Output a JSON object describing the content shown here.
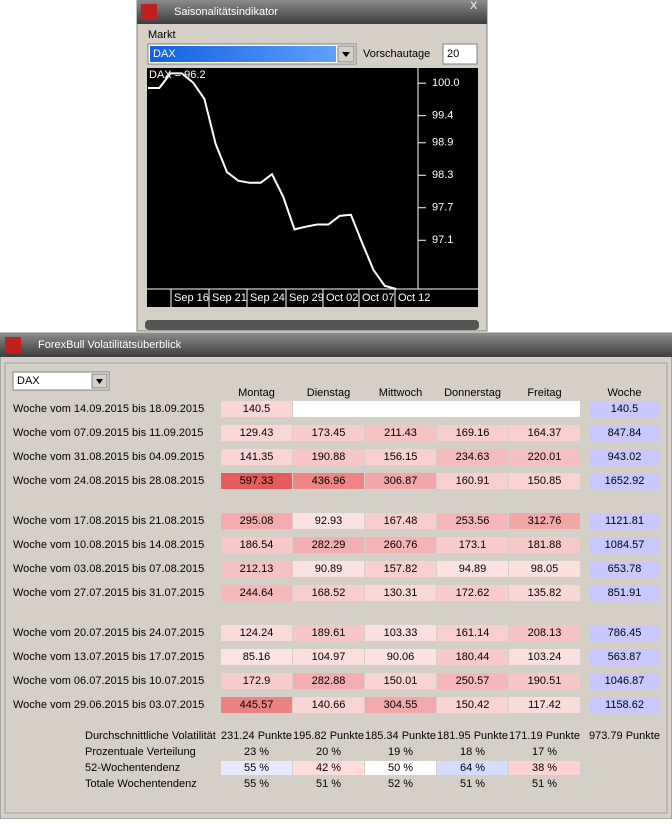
{
  "window1": {
    "title": "Saisonalitätsindikator",
    "market_label": "Markt",
    "market": "DAX",
    "preview_label": "Vorschautage",
    "preview_days": "20",
    "close": "X"
  },
  "chart_data": {
    "type": "line",
    "label": "DAX = 96.2",
    "color": "#ffffff",
    "values": [
      99.91,
      99.91,
      100.18,
      100.18,
      100.01,
      99.71,
      98.88,
      98.36,
      98.2,
      98.16,
      98.16,
      98.32,
      97.9,
      97.3,
      97.35,
      97.39,
      97.39,
      97.55,
      97.57,
      97.05,
      96.55,
      96.26,
      96.2
    ],
    "x_labels": [
      "Sep 16",
      "Sep 21",
      "Sep 24",
      "Sep 29",
      "Oct 02",
      "Oct 07",
      "Oct 12"
    ],
    "ylim": [
      96.2,
      100.28
    ],
    "yticks": [
      {
        "value": 100,
        "label": "100.0"
      },
      99.4,
      98.9,
      98.3,
      97.7,
      97.1
    ]
  },
  "window2": {
    "title": "ForexBull Volatilitätsüberblick",
    "market": "DAX",
    "headers": [
      "Montag",
      "Dienstag",
      "Mittwoch",
      "Donnerstag",
      "Freitag",
      "Woche"
    ],
    "groups": [
      [
        {
          "label": "Woche vom 14.09.2015 bis 18.09.2015",
          "values": [
            "140.5"
          ],
          "week": "140.5"
        },
        {
          "label": "Woche vom 07.09.2015 bis 11.09.2015",
          "values": [
            "129.43",
            "173.45",
            "211.43",
            "169.16",
            "164.37"
          ],
          "week": "847.84"
        },
        {
          "label": "Woche vom 31.08.2015 bis 04.09.2015",
          "values": [
            "141.35",
            "190.88",
            "156.15",
            "234.63",
            "220.01"
          ],
          "week": "943.02"
        },
        {
          "label": "Woche vom 24.08.2015 bis 28.08.2015",
          "values": [
            "597.33",
            "436.96",
            "306.87",
            "160.91",
            "150.85"
          ],
          "week": "1652.92"
        }
      ],
      [
        {
          "label": "Woche vom 17.08.2015 bis 21.08.2015",
          "values": [
            "295.08",
            "92.93",
            "167.48",
            "253.56",
            "312.76"
          ],
          "week": "1121.81"
        },
        {
          "label": "Woche vom 10.08.2015 bis 14.08.2015",
          "values": [
            "186.54",
            "282.29",
            "260.76",
            "173.1",
            "181.88"
          ],
          "week": "1084.57"
        },
        {
          "label": "Woche vom 03.08.2015 bis 07.08.2015",
          "values": [
            "212.13",
            "90.89",
            "157.82",
            "94.89",
            "98.05"
          ],
          "week": "653.78"
        },
        {
          "label": "Woche vom 27.07.2015 bis 31.07.2015",
          "values": [
            "244.64",
            "168.52",
            "130.31",
            "172.62",
            "135.82"
          ],
          "week": "851.91"
        }
      ],
      [
        {
          "label": "Woche vom 20.07.2015 bis 24.07.2015",
          "values": [
            "124.24",
            "189.61",
            "103.33",
            "161.14",
            "208.13"
          ],
          "week": "786.45"
        },
        {
          "label": "Woche vom 13.07.2015 bis 17.07.2015",
          "values": [
            "85.16",
            "104.97",
            "90.06",
            "180.44",
            "103.24"
          ],
          "week": "563.87"
        },
        {
          "label": "Woche vom 06.07.2015 bis 10.07.2015",
          "values": [
            "172.9",
            "282.88",
            "150.01",
            "250.57",
            "190.51"
          ],
          "week": "1046.87"
        },
        {
          "label": "Woche vom 29.06.2015 bis 03.07.2015",
          "values": [
            "445.57",
            "140.66",
            "304.55",
            "150.42",
            "117.42"
          ],
          "week": "1158.62"
        }
      ]
    ],
    "summary": [
      {
        "label": "Durchschnittliche Volatilität",
        "values": [
          "231.24 Punkte",
          "195.82 Punkte",
          "185.34 Punkte",
          "181.95 Punkte",
          "171.19 Punkte",
          "973.79 Punkte"
        ]
      },
      {
        "label": "Prozentuale Verteilung",
        "values": [
          "23 %",
          "20 %",
          "19 %",
          "18 %",
          "17 %"
        ]
      },
      {
        "label": "52-Wochentendenz",
        "values": [
          "55 %",
          "42 %",
          "50 %",
          "64 %",
          "38 %"
        ]
      },
      {
        "label": "Totale Wochentendenz",
        "values": [
          "55 %",
          "51 %",
          "52 %",
          "51 %",
          "51 %"
        ]
      }
    ]
  }
}
